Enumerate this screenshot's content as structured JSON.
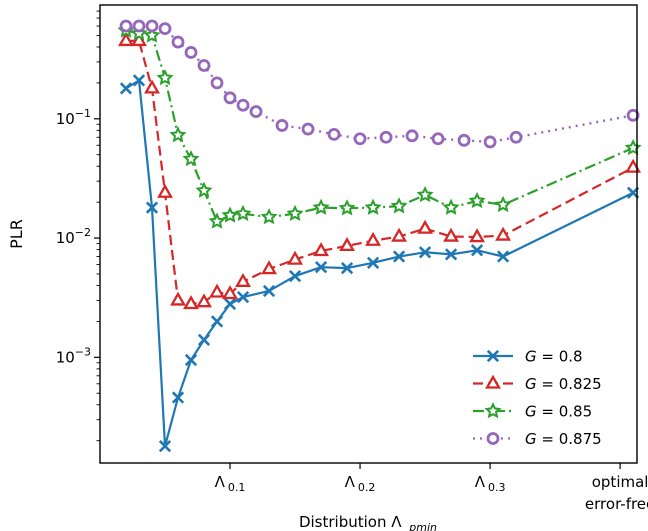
{
  "chart_data": {
    "type": "line",
    "title": "",
    "xlabel_main": "Distribution Λ",
    "xlabel_sub": "pmin",
    "ylabel": "PLR",
    "yscale": "log",
    "ylim": [
      0.00013,
      0.9
    ],
    "xlim": [
      0.0,
      0.413
    ],
    "grid": false,
    "legend_position": "lower-right",
    "x_ticks": [
      {
        "x": 0.1,
        "main": "Λ",
        "sub": "0.1",
        "line2": ""
      },
      {
        "x": 0.2,
        "main": "Λ",
        "sub": "0.2",
        "line2": ""
      },
      {
        "x": 0.3,
        "main": "Λ",
        "sub": "0.3",
        "line2": ""
      },
      {
        "x": 0.4,
        "main": "optimal",
        "sub": "",
        "line2": "error-free"
      }
    ],
    "y_ticks": [
      {
        "value": 0.001,
        "base": "10",
        "exp": "−3"
      },
      {
        "value": 0.01,
        "base": "10",
        "exp": "−2"
      },
      {
        "value": 0.1,
        "base": "10",
        "exp": "−1"
      }
    ],
    "series": [
      {
        "name_prefix": "G",
        "name_value": " = 0.8",
        "color": "#1f77b4",
        "dash": "",
        "marker": "x",
        "points": [
          [
            0.02,
            0.18
          ],
          [
            0.03,
            0.21
          ],
          [
            0.04,
            0.018
          ],
          [
            0.05,
            0.00018
          ],
          [
            0.06,
            0.00046
          ],
          [
            0.07,
            0.00095
          ],
          [
            0.08,
            0.0014
          ],
          [
            0.09,
            0.002
          ],
          [
            0.1,
            0.0028
          ],
          [
            0.11,
            0.0032
          ],
          [
            0.13,
            0.0036
          ],
          [
            0.15,
            0.0048
          ],
          [
            0.17,
            0.0057
          ],
          [
            0.19,
            0.0056
          ],
          [
            0.21,
            0.0062
          ],
          [
            0.23,
            0.007
          ],
          [
            0.25,
            0.0076
          ],
          [
            0.27,
            0.0073
          ],
          [
            0.29,
            0.0079
          ],
          [
            0.31,
            0.007
          ],
          [
            0.41,
            0.024
          ]
        ]
      },
      {
        "name_prefix": "G",
        "name_value": " = 0.825",
        "color": "#d62728",
        "dash": "10 5",
        "marker": "triangle",
        "points": [
          [
            0.02,
            0.45
          ],
          [
            0.03,
            0.45
          ],
          [
            0.04,
            0.18
          ],
          [
            0.05,
            0.024
          ],
          [
            0.06,
            0.003
          ],
          [
            0.07,
            0.0028
          ],
          [
            0.08,
            0.0029
          ],
          [
            0.09,
            0.0035
          ],
          [
            0.1,
            0.0034
          ],
          [
            0.11,
            0.0043
          ],
          [
            0.13,
            0.0055
          ],
          [
            0.15,
            0.0066
          ],
          [
            0.17,
            0.0078
          ],
          [
            0.19,
            0.0086
          ],
          [
            0.21,
            0.0095
          ],
          [
            0.23,
            0.0103
          ],
          [
            0.25,
            0.012
          ],
          [
            0.27,
            0.0103
          ],
          [
            0.29,
            0.0102
          ],
          [
            0.31,
            0.0105
          ],
          [
            0.41,
            0.039
          ]
        ]
      },
      {
        "name_prefix": "G",
        "name_value": " = 0.85",
        "color": "#2ca02c",
        "dash": "11 4 2 4",
        "marker": "star",
        "points": [
          [
            0.02,
            0.55
          ],
          [
            0.03,
            0.52
          ],
          [
            0.04,
            0.5
          ],
          [
            0.05,
            0.22
          ],
          [
            0.06,
            0.073
          ],
          [
            0.07,
            0.046
          ],
          [
            0.08,
            0.025
          ],
          [
            0.09,
            0.0138
          ],
          [
            0.1,
            0.0155
          ],
          [
            0.11,
            0.016
          ],
          [
            0.13,
            0.015
          ],
          [
            0.15,
            0.016
          ],
          [
            0.17,
            0.018
          ],
          [
            0.19,
            0.0178
          ],
          [
            0.21,
            0.018
          ],
          [
            0.23,
            0.0185
          ],
          [
            0.25,
            0.023
          ],
          [
            0.27,
            0.018
          ],
          [
            0.29,
            0.0205
          ],
          [
            0.31,
            0.019
          ],
          [
            0.41,
            0.057
          ]
        ]
      },
      {
        "name_prefix": "G",
        "name_value": " = 0.875",
        "color": "#9467bd",
        "dash": "2 5",
        "marker": "circle",
        "points": [
          [
            0.02,
            0.6
          ],
          [
            0.03,
            0.6
          ],
          [
            0.04,
            0.6
          ],
          [
            0.05,
            0.57
          ],
          [
            0.06,
            0.44
          ],
          [
            0.07,
            0.36
          ],
          [
            0.08,
            0.28
          ],
          [
            0.09,
            0.2
          ],
          [
            0.1,
            0.15
          ],
          [
            0.11,
            0.13
          ],
          [
            0.12,
            0.115
          ],
          [
            0.14,
            0.088
          ],
          [
            0.16,
            0.082
          ],
          [
            0.18,
            0.074
          ],
          [
            0.2,
            0.068
          ],
          [
            0.22,
            0.07
          ],
          [
            0.24,
            0.072
          ],
          [
            0.26,
            0.068
          ],
          [
            0.28,
            0.066
          ],
          [
            0.3,
            0.064
          ],
          [
            0.32,
            0.07
          ],
          [
            0.41,
            0.107
          ]
        ]
      }
    ]
  }
}
